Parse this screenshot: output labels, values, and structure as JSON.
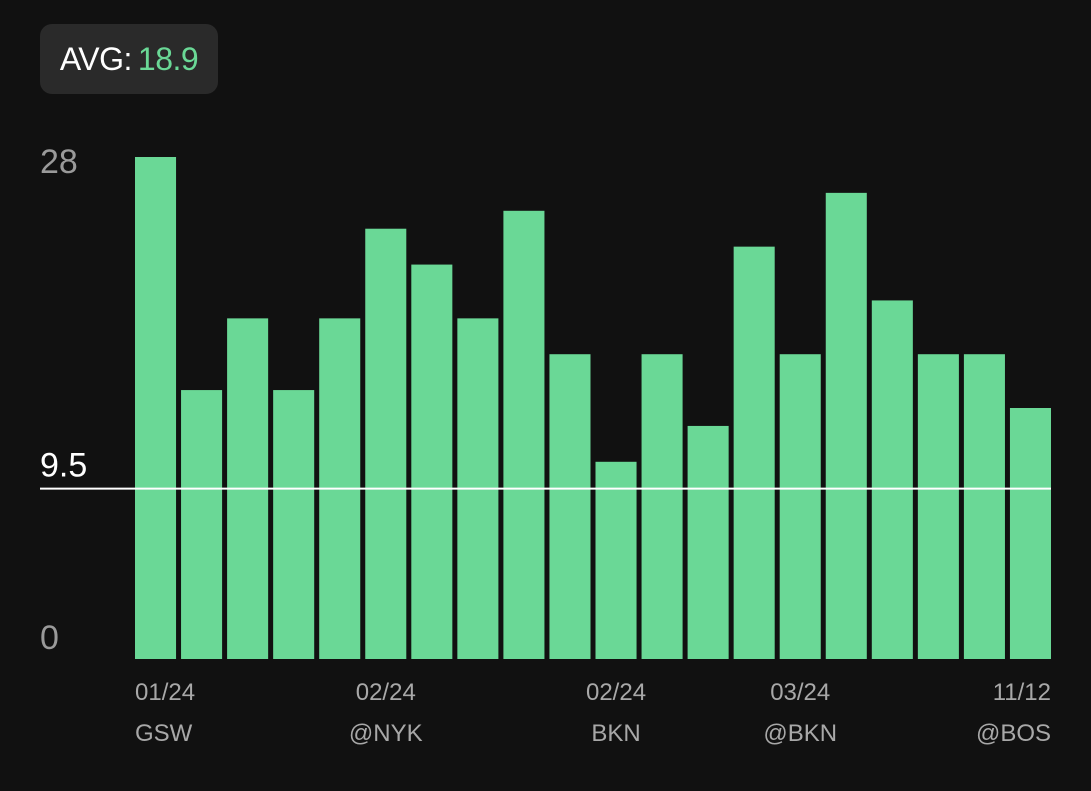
{
  "header": {
    "avg_label": "AVG:",
    "avg_value": "18.9"
  },
  "colors": {
    "bar": "#6ad896",
    "background": "#111111",
    "line": "#ffffff",
    "avg_value": "#6ad896"
  },
  "chart_data": {
    "type": "bar",
    "values": [
      28,
      15,
      19,
      15,
      19,
      24,
      22,
      19,
      25,
      17,
      11,
      17,
      13,
      23,
      17,
      26,
      20,
      17,
      17,
      14
    ],
    "ylim": [
      0,
      28
    ],
    "yticks": [
      {
        "value": 28,
        "label": "28"
      },
      {
        "value": 0,
        "label": "0"
      }
    ],
    "reference_line": {
      "value": 9.5,
      "label": "9.5"
    },
    "x_labels": [
      {
        "index": 0,
        "date": "01/24",
        "opponent": "GSW"
      },
      {
        "index": 5,
        "date": "02/24",
        "opponent": "@NYK"
      },
      {
        "index": 10,
        "date": "02/24",
        "opponent": "BKN"
      },
      {
        "index": 14,
        "date": "03/24",
        "opponent": "@BKN"
      },
      {
        "index": 19,
        "date": "11/12",
        "opponent": "@BOS"
      }
    ]
  }
}
